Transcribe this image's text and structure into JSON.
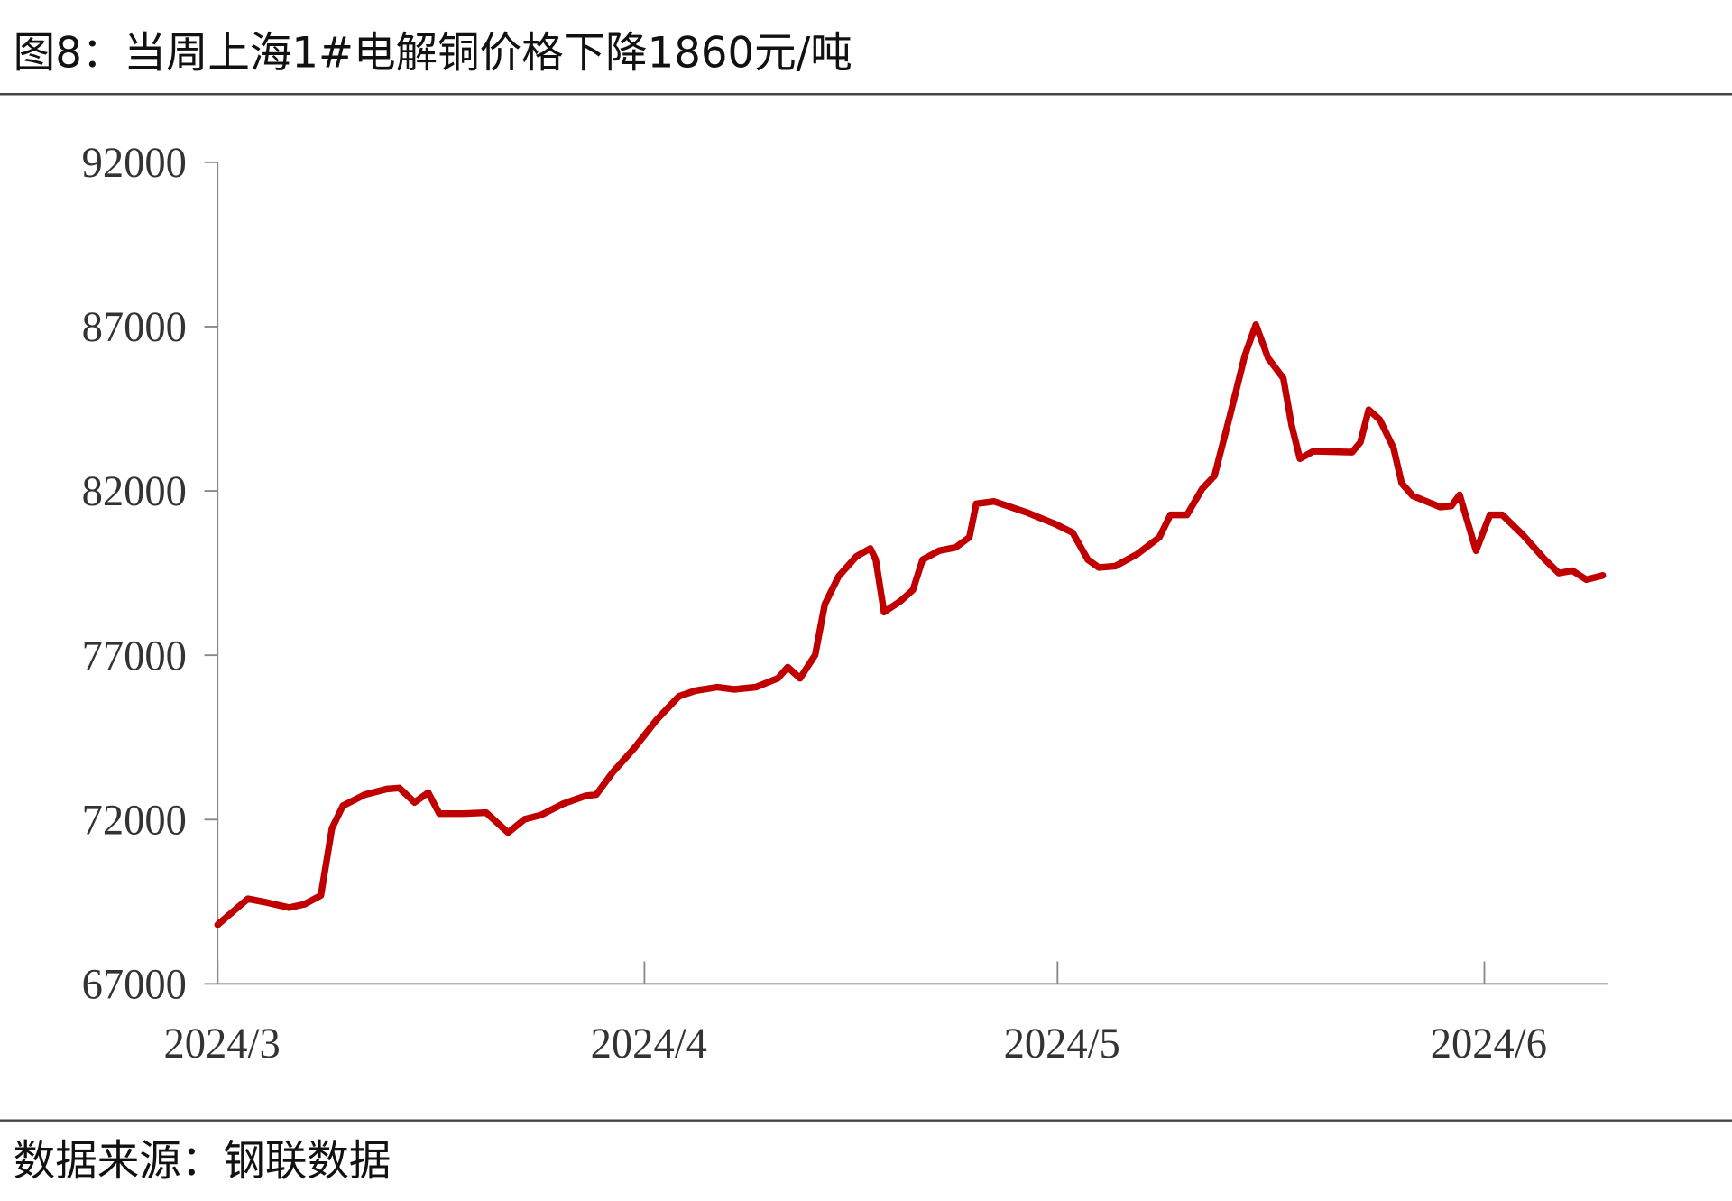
{
  "chart_data": {
    "type": "line",
    "title": "图8：当周上海1#电解铜价格下降1860元/吨",
    "source": "数据来源：钢联数据",
    "series": [
      {
        "color": "#c00000",
        "x": [
          0,
          2.2,
          3.4,
          5.2,
          6.3,
          7.5,
          8.3,
          9.1,
          10.7,
          12.3,
          13.2,
          14.3,
          15.3,
          16.1,
          17.9,
          19.5,
          21.1,
          22.3,
          23.5,
          25.1,
          26.7,
          27.5,
          28.7,
          30.3,
          31.9,
          33.5,
          34.7,
          36.3,
          37.5,
          39.1,
          40.7,
          41.4,
          42.3,
          43.4,
          44.1,
          45.1,
          46.4,
          47.4,
          47.8,
          48.4,
          49.6,
          50.5,
          51.2,
          52.4,
          53.6,
          54.6,
          55.1,
          56.4,
          58.8,
          60.8,
          62.1,
          63.2,
          64.0,
          65.2,
          66.8,
          68.4,
          69.2,
          70.4,
          71.5,
          72.4,
          73.6,
          74.6,
          75.4,
          76.3,
          77.4,
          78.0,
          78.6,
          79.6,
          82.4,
          83.0,
          83.6,
          84.4,
          85.4,
          86.0,
          86.8,
          88.8,
          89.6,
          90.2,
          91.4,
          92.4,
          93.3,
          94.8,
          96.4,
          97.4,
          98.4,
          99.4,
          100.6
        ],
        "values": [
          68800,
          69590,
          69490,
          69320,
          69420,
          69690,
          71730,
          72420,
          72760,
          72930,
          72960,
          72520,
          72820,
          72180,
          72180,
          72210,
          71600,
          72010,
          72140,
          72480,
          72720,
          72760,
          73440,
          74190,
          75040,
          75750,
          75920,
          76030,
          75960,
          76030,
          76300,
          76640,
          76300,
          77010,
          78550,
          79400,
          80010,
          80250,
          79910,
          78310,
          78650,
          78990,
          79910,
          80180,
          80280,
          80590,
          81610,
          81680,
          81340,
          81000,
          80730,
          79910,
          79670,
          79710,
          80080,
          80590,
          81270,
          81270,
          82060,
          82460,
          84410,
          86110,
          87060,
          86040,
          85430,
          84000,
          82980,
          83210,
          83180,
          83480,
          84470,
          84170,
          83310,
          82230,
          81850,
          81510,
          81540,
          81880,
          80180,
          81270,
          81270,
          80660,
          79910,
          79500,
          79570,
          79300,
          79430
        ]
      }
    ],
    "xlim": [
      0,
      101
    ],
    "xticks": [
      {
        "value": 0,
        "label": "2024/3"
      },
      {
        "value": 31,
        "label": "2024/4"
      },
      {
        "value": 61,
        "label": "2024/5"
      },
      {
        "value": 92,
        "label": "2024/6"
      }
    ],
    "ylim": [
      67000,
      92000
    ],
    "yticks": [
      67000,
      72000,
      77000,
      82000,
      87000,
      92000
    ],
    "grid": false
  }
}
